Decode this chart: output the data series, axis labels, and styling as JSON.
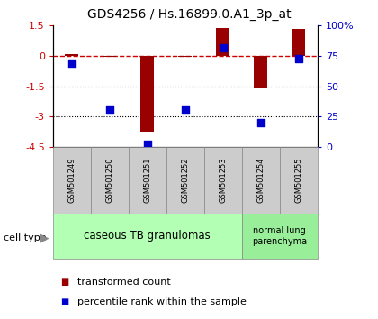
{
  "title": "GDS4256 / Hs.16899.0.A1_3p_at",
  "samples": [
    "GSM501249",
    "GSM501250",
    "GSM501251",
    "GSM501252",
    "GSM501253",
    "GSM501254",
    "GSM501255"
  ],
  "transformed_counts": [
    0.1,
    -0.05,
    -3.8,
    -0.05,
    1.4,
    -1.6,
    1.35
  ],
  "percentile_ranks": [
    68,
    30,
    2,
    30,
    82,
    20,
    73
  ],
  "ylim_left": [
    -4.5,
    1.5
  ],
  "ylim_right": [
    0,
    100
  ],
  "bar_color": "#990000",
  "dot_color": "#0000cc",
  "dashed_line_color": "#cc0000",
  "group1_label": "caseous TB granulomas",
  "group2_label": "normal lung\nparenchyma",
  "group1_bg": "#b3ffb3",
  "group2_bg": "#99ee99",
  "sample_bg": "#cccccc",
  "cell_type_label": "cell type",
  "legend_red_label": "transformed count",
  "legend_blue_label": "percentile rank within the sample",
  "bar_width": 0.35,
  "dot_size": 35,
  "title_fontsize": 10,
  "tick_fontsize": 8,
  "sample_fontsize": 6,
  "legend_fontsize": 8
}
